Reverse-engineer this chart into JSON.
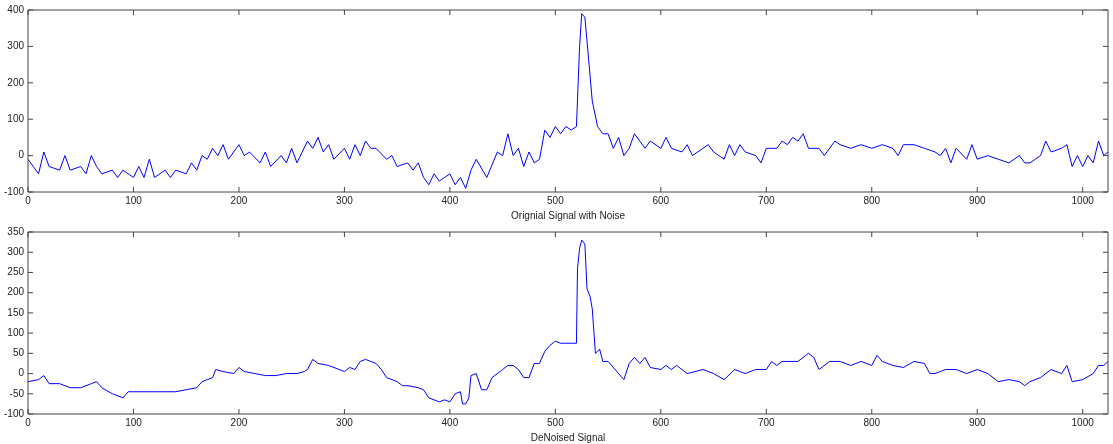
{
  "chart_data": [
    {
      "type": "line",
      "xlabel": "Orignial Signal with Noise",
      "xlim": [
        0,
        1024
      ],
      "xticks": [
        0,
        100,
        200,
        300,
        400,
        500,
        600,
        700,
        800,
        900,
        1000
      ],
      "ylim": [
        -100,
        400
      ],
      "yticks": [
        -100,
        0,
        100,
        200,
        300,
        400
      ],
      "grid": false,
      "legend": false,
      "marker": "none",
      "line_style": "solid",
      "series": [
        {
          "color": "#0000ff",
          "x": [
            0,
            5,
            10,
            15,
            20,
            30,
            35,
            40,
            50,
            55,
            60,
            65,
            70,
            80,
            85,
            90,
            100,
            105,
            110,
            115,
            120,
            130,
            135,
            140,
            150,
            155,
            160,
            165,
            170,
            175,
            180,
            185,
            190,
            200,
            205,
            210,
            220,
            225,
            230,
            240,
            245,
            250,
            255,
            260,
            265,
            270,
            275,
            280,
            285,
            290,
            300,
            305,
            310,
            315,
            320,
            325,
            330,
            340,
            345,
            350,
            360,
            365,
            370,
            375,
            380,
            385,
            390,
            395,
            400,
            405,
            410,
            415,
            420,
            425,
            435,
            445,
            450,
            455,
            460,
            465,
            470,
            475,
            480,
            485,
            490,
            495,
            500,
            505,
            510,
            515,
            520,
            523,
            525,
            528,
            532,
            535,
            540,
            545,
            550,
            555,
            560,
            565,
            570,
            575,
            580,
            585,
            590,
            600,
            605,
            610,
            620,
            625,
            630,
            640,
            645,
            650,
            660,
            665,
            670,
            675,
            680,
            690,
            695,
            700,
            710,
            715,
            720,
            725,
            730,
            735,
            740,
            750,
            755,
            765,
            770,
            780,
            790,
            800,
            810,
            820,
            825,
            830,
            840,
            850,
            860,
            865,
            870,
            875,
            880,
            890,
            895,
            900,
            910,
            920,
            930,
            940,
            945,
            950,
            960,
            965,
            970,
            980,
            985,
            990,
            995,
            1000,
            1005,
            1010,
            1015,
            1020,
            1024
          ],
          "values": [
            -10,
            -30,
            -50,
            10,
            -30,
            -40,
            0,
            -40,
            -30,
            -50,
            0,
            -30,
            -50,
            -40,
            -60,
            -40,
            -60,
            -30,
            -60,
            -10,
            -60,
            -40,
            -60,
            -40,
            -50,
            -20,
            -40,
            0,
            -10,
            20,
            0,
            30,
            -10,
            30,
            0,
            10,
            -20,
            10,
            -30,
            0,
            -20,
            20,
            -20,
            10,
            40,
            20,
            50,
            10,
            30,
            -10,
            20,
            -10,
            30,
            0,
            40,
            20,
            20,
            -10,
            0,
            -30,
            -20,
            -40,
            -20,
            -60,
            -80,
            -50,
            -70,
            -60,
            -50,
            -80,
            -60,
            -90,
            -40,
            -10,
            -60,
            10,
            0,
            60,
            0,
            20,
            -30,
            10,
            -20,
            -10,
            70,
            50,
            80,
            60,
            80,
            70,
            80,
            300,
            390,
            380,
            250,
            150,
            80,
            60,
            60,
            20,
            50,
            0,
            20,
            60,
            40,
            20,
            40,
            20,
            50,
            20,
            10,
            30,
            0,
            20,
            30,
            10,
            -10,
            30,
            0,
            30,
            10,
            0,
            -20,
            20,
            20,
            40,
            30,
            50,
            40,
            60,
            20,
            20,
            0,
            40,
            30,
            20,
            30,
            20,
            30,
            20,
            0,
            30,
            30,
            20,
            10,
            0,
            20,
            -20,
            20,
            -10,
            30,
            -10,
            0,
            -10,
            -20,
            0,
            -20,
            -20,
            0,
            40,
            10,
            20,
            30,
            -30,
            0,
            -30,
            0,
            -20,
            40,
            0,
            10
          ]
        }
      ]
    },
    {
      "type": "line",
      "xlabel": "DeNoised Signal",
      "xlim": [
        0,
        1024
      ],
      "xticks": [
        0,
        100,
        200,
        300,
        400,
        500,
        600,
        700,
        800,
        900,
        1000
      ],
      "ylim": [
        -100,
        350
      ],
      "yticks": [
        -100,
        -50,
        0,
        50,
        100,
        150,
        200,
        250,
        300,
        350
      ],
      "grid": false,
      "legend": false,
      "marker": "none",
      "line_style": "solid",
      "series": [
        {
          "color": "#0000ff",
          "x": [
            0,
            10,
            15,
            20,
            30,
            40,
            50,
            60,
            65,
            70,
            80,
            90,
            95,
            100,
            110,
            120,
            130,
            140,
            150,
            160,
            165,
            170,
            175,
            178,
            185,
            195,
            200,
            205,
            215,
            225,
            235,
            245,
            255,
            262,
            265,
            270,
            275,
            285,
            295,
            300,
            305,
            310,
            315,
            320,
            325,
            330,
            335,
            340,
            350,
            355,
            360,
            370,
            375,
            380,
            390,
            395,
            400,
            405,
            410,
            412,
            415,
            418,
            420,
            425,
            430,
            435,
            440,
            450,
            455,
            460,
            465,
            470,
            475,
            480,
            485,
            490,
            495,
            500,
            505,
            510,
            515,
            520,
            521,
            523,
            525,
            528,
            530,
            533,
            535,
            538,
            542,
            545,
            550,
            560,
            565,
            570,
            575,
            580,
            585,
            590,
            600,
            605,
            610,
            615,
            620,
            625,
            640,
            650,
            660,
            670,
            680,
            690,
            700,
            705,
            710,
            715,
            730,
            740,
            745,
            750,
            760,
            770,
            780,
            790,
            800,
            805,
            810,
            820,
            830,
            840,
            850,
            855,
            860,
            870,
            880,
            890,
            900,
            910,
            920,
            930,
            940,
            945,
            950,
            960,
            970,
            980,
            985,
            990,
            1000,
            1010,
            1015,
            1020,
            1024
          ],
          "values": [
            -20,
            -15,
            -5,
            -25,
            -25,
            -35,
            -35,
            -25,
            -20,
            -35,
            -50,
            -60,
            -45,
            -45,
            -45,
            -45,
            -45,
            -45,
            -40,
            -35,
            -20,
            -15,
            -10,
            10,
            5,
            0,
            15,
            5,
            0,
            -5,
            -5,
            0,
            0,
            5,
            10,
            35,
            25,
            20,
            10,
            5,
            15,
            10,
            30,
            35,
            30,
            25,
            10,
            -10,
            -20,
            -30,
            -30,
            -35,
            -40,
            -60,
            -70,
            -65,
            -70,
            -50,
            -45,
            -75,
            -75,
            -60,
            -5,
            0,
            -40,
            -40,
            -10,
            10,
            20,
            20,
            10,
            -10,
            -10,
            25,
            25,
            55,
            70,
            80,
            75,
            75,
            75,
            75,
            260,
            310,
            330,
            320,
            210,
            190,
            160,
            50,
            60,
            30,
            30,
            0,
            -15,
            25,
            40,
            25,
            40,
            15,
            10,
            20,
            10,
            20,
            10,
            0,
            10,
            0,
            -15,
            10,
            0,
            10,
            10,
            30,
            20,
            30,
            30,
            50,
            40,
            10,
            30,
            30,
            20,
            30,
            20,
            45,
            30,
            20,
            15,
            30,
            25,
            0,
            0,
            10,
            10,
            0,
            10,
            0,
            -20,
            -15,
            -20,
            -30,
            -20,
            -10,
            10,
            0,
            20,
            -20,
            -15,
            0,
            20,
            20,
            30
          ]
        }
      ]
    }
  ]
}
